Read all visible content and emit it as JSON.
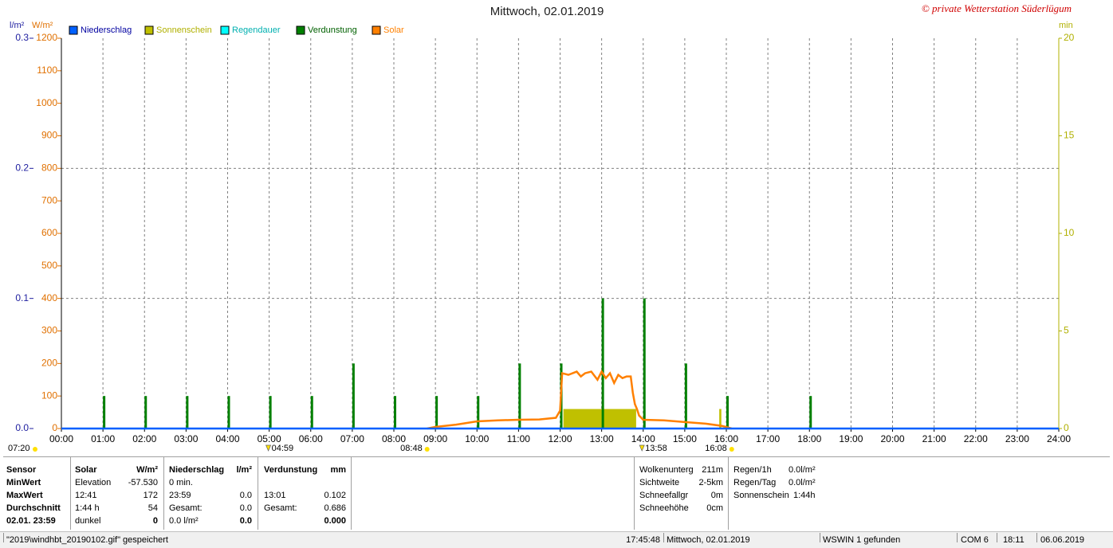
{
  "chart_data": {
    "type": "combo",
    "title": "Mittwoch, 02.01.2019",
    "copyright": "© private Wetterstation Süderlügum",
    "y_label": "l/m²",
    "y3_label": "W/m²",
    "y2_label": "min",
    "xlim": [
      0,
      24
    ],
    "xticks": [
      {
        "value": 0,
        "label": "00:00"
      },
      {
        "value": 1,
        "label": "01:00"
      },
      {
        "value": 2,
        "label": "02:00"
      },
      {
        "value": 3,
        "label": "03:00"
      },
      {
        "value": 4,
        "label": "04:00"
      },
      {
        "value": 5,
        "label": "05:00"
      },
      {
        "value": 6,
        "label": "06:00"
      },
      {
        "value": 7,
        "label": "07:00"
      },
      {
        "value": 8,
        "label": "08:00"
      },
      {
        "value": 9,
        "label": "09:00"
      },
      {
        "value": 10,
        "label": "10:00"
      },
      {
        "value": 11,
        "label": "11:00"
      },
      {
        "value": 12,
        "label": "12:00"
      },
      {
        "value": 13,
        "label": "13:00"
      },
      {
        "value": 14,
        "label": "14:00"
      },
      {
        "value": 15,
        "label": "15:00"
      },
      {
        "value": 16,
        "label": "16:00"
      },
      {
        "value": 17,
        "label": "17:00"
      },
      {
        "value": 18,
        "label": "18:00"
      },
      {
        "value": 19,
        "label": "19:00"
      },
      {
        "value": 20,
        "label": "20:00"
      },
      {
        "value": 21,
        "label": "21:00"
      },
      {
        "value": 22,
        "label": "22:00"
      },
      {
        "value": 23,
        "label": "23:00"
      },
      {
        "value": 24,
        "label": "24:00"
      }
    ],
    "ylim": [
      0,
      0.3
    ],
    "yticks": [
      {
        "value": 0,
        "label": "0.0"
      },
      0.1,
      0.2,
      0.3
    ],
    "y3lim": [
      0,
      1200
    ],
    "y3ticks": [
      0,
      100,
      200,
      300,
      400,
      500,
      600,
      700,
      800,
      900,
      1000,
      1100,
      1200
    ],
    "y2lim": [
      0,
      20
    ],
    "y2ticks": [
      0,
      5,
      10,
      15,
      20
    ],
    "grid": true,
    "series": [
      {
        "name": "Niederschlag",
        "color": "#0060ff",
        "type": "line",
        "axis": "y",
        "x": [
          0,
          24
        ],
        "values": [
          0,
          0
        ]
      },
      {
        "name": "Sonnenschein",
        "color": "#c0c000",
        "type": "span",
        "axis": "y2",
        "x_start": [
          12.08,
          15.83
        ],
        "x_end": [
          13.83,
          15.88
        ],
        "values": [
          1,
          1
        ]
      },
      {
        "name": "Regendauer",
        "color": "#00ffff",
        "type": "span",
        "axis": "y2",
        "x_start": [],
        "x_end": [],
        "values": []
      },
      {
        "name": "Verdunstung",
        "color": "#008000",
        "type": "bar",
        "axis": "y",
        "x": [
          1,
          2,
          3,
          4,
          5,
          6,
          7,
          8,
          9,
          10,
          11,
          12,
          13,
          14,
          15,
          16,
          18
        ],
        "values": [
          0.025,
          0.025,
          0.025,
          0.025,
          0.025,
          0.025,
          0.05,
          0.025,
          0.025,
          0.025,
          0.05,
          0.05,
          0.1,
          0.1,
          0.05,
          0.025,
          0.025
        ]
      },
      {
        "name": "Solar",
        "color": "#ff8000",
        "type": "line",
        "axis": "y3",
        "x": [
          8.8,
          9,
          9.5,
          10,
          10.5,
          11,
          11.5,
          11.9,
          12.0,
          12.05,
          12.2,
          12.4,
          12.5,
          12.6,
          12.75,
          12.9,
          13.0,
          13.1,
          13.2,
          13.3,
          13.4,
          13.5,
          13.6,
          13.7,
          13.75,
          13.8,
          13.85,
          13.9,
          14.0,
          14.5,
          15,
          15.5,
          15.9,
          16.13
        ],
        "values": [
          0,
          5,
          12,
          22,
          25,
          27,
          28,
          33,
          55,
          170,
          165,
          175,
          160,
          170,
          175,
          150,
          175,
          155,
          170,
          140,
          165,
          155,
          160,
          160,
          110,
          75,
          60,
          40,
          27,
          25,
          20,
          15,
          8,
          0
        ]
      }
    ],
    "annotations": [
      {
        "label": "07:20",
        "kind": "sun"
      },
      {
        "label": "04:59",
        "kind": "moon",
        "x": 4.98
      },
      {
        "label": "08:48",
        "kind": "sun",
        "x": 8.8
      },
      {
        "label": "13:58",
        "kind": "moon",
        "x": 13.97
      },
      {
        "label": "16:08",
        "kind": "sun",
        "x": 16.13
      }
    ]
  },
  "stats_table": {
    "rows": [
      [
        "Sensor",
        "Solar",
        "W/m²",
        "Niederschlag",
        "l/m²",
        "Verdunstung",
        "mm"
      ],
      [
        "MinWert",
        "Elevation",
        "-57.530",
        "0 min.",
        null,
        null,
        null
      ],
      [
        "MaxWert",
        "12:41",
        "172",
        "23:59",
        "0.0",
        "13:01",
        "0.102"
      ],
      [
        "Durchschnitt",
        "1:44 h",
        "54",
        "Gesamt:",
        "0.0",
        "Gesamt:",
        "0.686"
      ],
      [
        "02.01. 23:59",
        "dunkel",
        "0",
        "0.0 l/m²",
        "0.0",
        null,
        "0.000"
      ]
    ]
  },
  "conditions": [
    {
      "label": "Wolkenunterg",
      "value": "211m"
    },
    {
      "label": "Sichtweite",
      "value": "2-5km"
    },
    {
      "label": "Schneefallgr",
      "value": "0m"
    },
    {
      "label": "Schneehöhe",
      "value": "0cm"
    }
  ],
  "rain_panel": [
    {
      "label": "Regen/1h",
      "value": "0.0l/m²"
    },
    {
      "label": "Regen/Tag",
      "value": "0.0l/m²"
    },
    {
      "label": "Sonnenschein",
      "value": "1:44h"
    }
  ],
  "status_bar": [
    "\"2019\\windhbt_20190102.gif\" gespeichert",
    "17:45:48",
    "Mittwoch, 02.01.2019",
    "WSWIN 1 gefunden",
    "COM 6",
    "18:11",
    "06.06.2019"
  ]
}
